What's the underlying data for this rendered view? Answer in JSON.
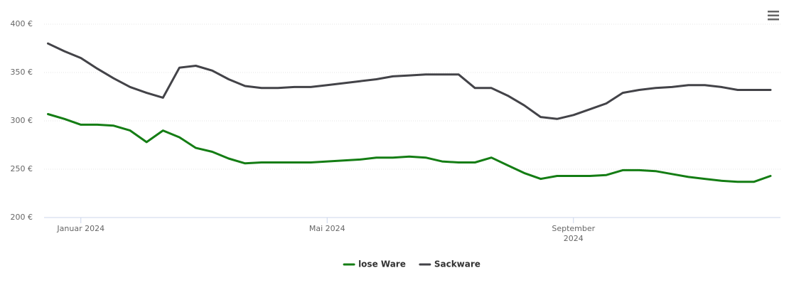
{
  "chart_data": {
    "type": "line",
    "categories": [
      null,
      null,
      "Januar 2024",
      null,
      null,
      null,
      null,
      null,
      null,
      null,
      null,
      null,
      null,
      null,
      null,
      null,
      null,
      "Mai 2024",
      null,
      null,
      null,
      null,
      null,
      null,
      null,
      null,
      null,
      null,
      null,
      null,
      null,
      null,
      "September 2024",
      null,
      null,
      null,
      null,
      null,
      null,
      null,
      null,
      null,
      null,
      null,
      null
    ],
    "ylim": [
      200,
      400
    ],
    "yticks": [
      {
        "value": 200,
        "label": "200 €"
      },
      {
        "value": 250,
        "label": "250 €"
      },
      {
        "value": 300,
        "label": "300 €"
      },
      {
        "value": 350,
        "label": "350 €"
      },
      {
        "value": 400,
        "label": "400 €"
      }
    ],
    "grid": true,
    "legend": "bottom",
    "series": [
      {
        "name": "lose Ware",
        "color": "#147d14",
        "values": [
          307,
          302,
          296,
          296,
          295,
          290,
          278,
          290,
          283,
          272,
          268,
          261,
          256,
          257,
          257,
          257,
          257,
          258,
          259,
          260,
          262,
          262,
          263,
          262,
          258,
          257,
          257,
          262,
          254,
          246,
          240,
          243,
          243,
          243,
          244,
          249,
          249,
          248,
          245,
          242,
          240,
          238,
          237,
          237,
          243
        ]
      },
      {
        "name": "Sackware",
        "color": "#434348",
        "values": [
          380,
          372,
          365,
          354,
          344,
          335,
          329,
          324,
          355,
          357,
          352,
          343,
          336,
          334,
          334,
          335,
          335,
          337,
          339,
          341,
          343,
          346,
          347,
          348,
          348,
          348,
          334,
          334,
          326,
          316,
          304,
          302,
          306,
          312,
          318,
          329,
          332,
          334,
          335,
          337,
          337,
          335,
          332,
          332,
          332
        ]
      }
    ]
  }
}
